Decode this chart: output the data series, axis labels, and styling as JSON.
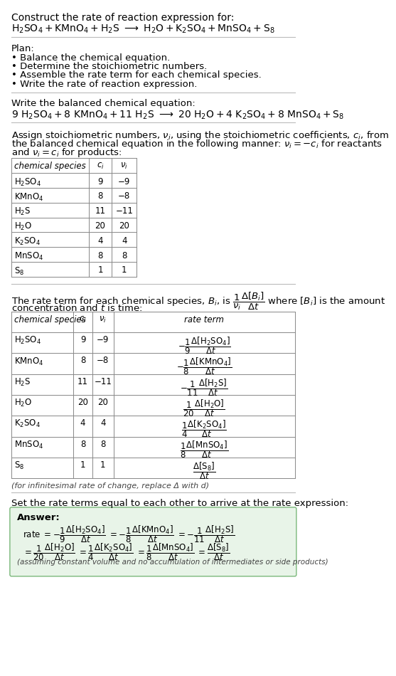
{
  "title_line1": "Construct the rate of reaction expression for:",
  "plan_title": "Plan:",
  "plan_items": [
    "• Balance the chemical equation.",
    "• Determine the stoichiometric numbers.",
    "• Assemble the rate term for each chemical species.",
    "• Write the rate of reaction expression."
  ],
  "balanced_label": "Write the balanced chemical equation:",
  "stoich_intro_lines": [
    "Assign stoichiometric numbers, $\\nu_i$, using the stoichiometric coefficients, $c_i$, from",
    "the balanced chemical equation in the following manner: $\\nu_i = -c_i$ for reactants",
    "and $\\nu_i = c_i$ for products:"
  ],
  "table1_species_math": [
    "$\\mathrm{H_2SO_4}$",
    "$\\mathrm{KMnO_4}$",
    "$\\mathrm{H_2S}$",
    "$\\mathrm{H_2O}$",
    "$\\mathrm{K_2SO_4}$",
    "$\\mathrm{MnSO_4}$",
    "$\\mathrm{S_8}$"
  ],
  "table1_ci": [
    "9",
    "8",
    "11",
    "20",
    "4",
    "8",
    "1"
  ],
  "table1_vi": [
    "−9",
    "−8",
    "−11",
    "20",
    "4",
    "8",
    "1"
  ],
  "rate_intro_line1": "The rate term for each chemical species, $B_i$, is $\\dfrac{1}{\\nu_i}\\dfrac{\\Delta[B_i]}{\\Delta t}$ where $[B_i]$ is the amount",
  "rate_intro_line2": "concentration and $t$ is time:",
  "table2_rate_terms": [
    "$-\\dfrac{1}{9}\\dfrac{\\Delta[\\mathrm{H_2SO_4}]}{\\Delta t}$",
    "$-\\dfrac{1}{8}\\dfrac{\\Delta[\\mathrm{KMnO_4}]}{\\Delta t}$",
    "$-\\dfrac{1}{11}\\dfrac{\\Delta[\\mathrm{H_2S}]}{\\Delta t}$",
    "$\\dfrac{1}{20}\\dfrac{\\Delta[\\mathrm{H_2O}]}{\\Delta t}$",
    "$\\dfrac{1}{4}\\dfrac{\\Delta[\\mathrm{K_2SO_4}]}{\\Delta t}$",
    "$\\dfrac{1}{8}\\dfrac{\\Delta[\\mathrm{MnSO_4}]}{\\Delta t}$",
    "$\\dfrac{\\Delta[\\mathrm{S_8}]}{\\Delta t}$"
  ],
  "infinitesimal_note": "(for infinitesimal rate of change, replace Δ with d)",
  "set_equal_text": "Set the rate terms equal to each other to arrive at the rate expression:",
  "answer_label": "Answer:",
  "answer_box_color": "#e8f4e8",
  "answer_box_border": "#7ab87a",
  "footer_note": "(assuming constant volume and no accumulation of intermediates or side products)",
  "bg_color": "#ffffff",
  "text_color": "#000000",
  "table_border_color": "#888888",
  "section_line_color": "#bbbbbb"
}
